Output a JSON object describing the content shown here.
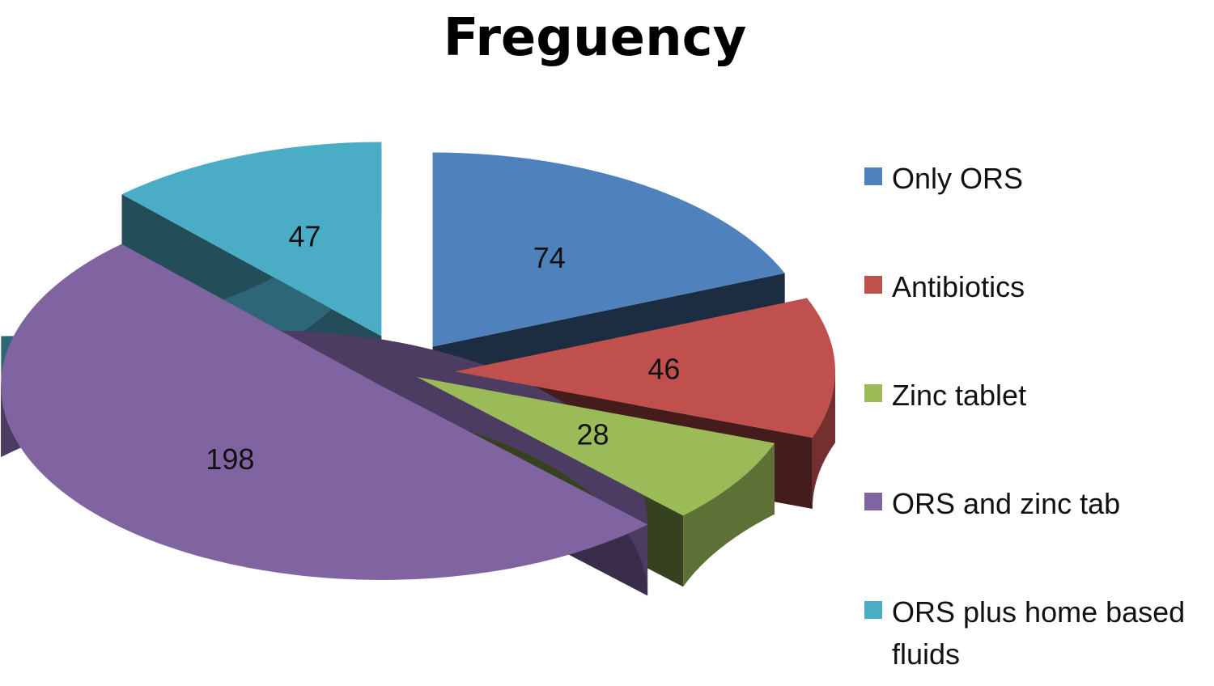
{
  "chart_data": {
    "type": "pie",
    "title": "Freguency",
    "legend_position": "right",
    "categories": [
      "Only ORS",
      "Antibiotics",
      "Zinc tablet",
      "ORS and zinc tab",
      "ORS plus home based fluids"
    ],
    "values": [
      74,
      46,
      28,
      198,
      47
    ],
    "colors": [
      "#4F81BD",
      "#C0504D",
      "#9BBB59",
      "#8064A2",
      "#4BACC6"
    ],
    "style": "3d-exploded"
  }
}
